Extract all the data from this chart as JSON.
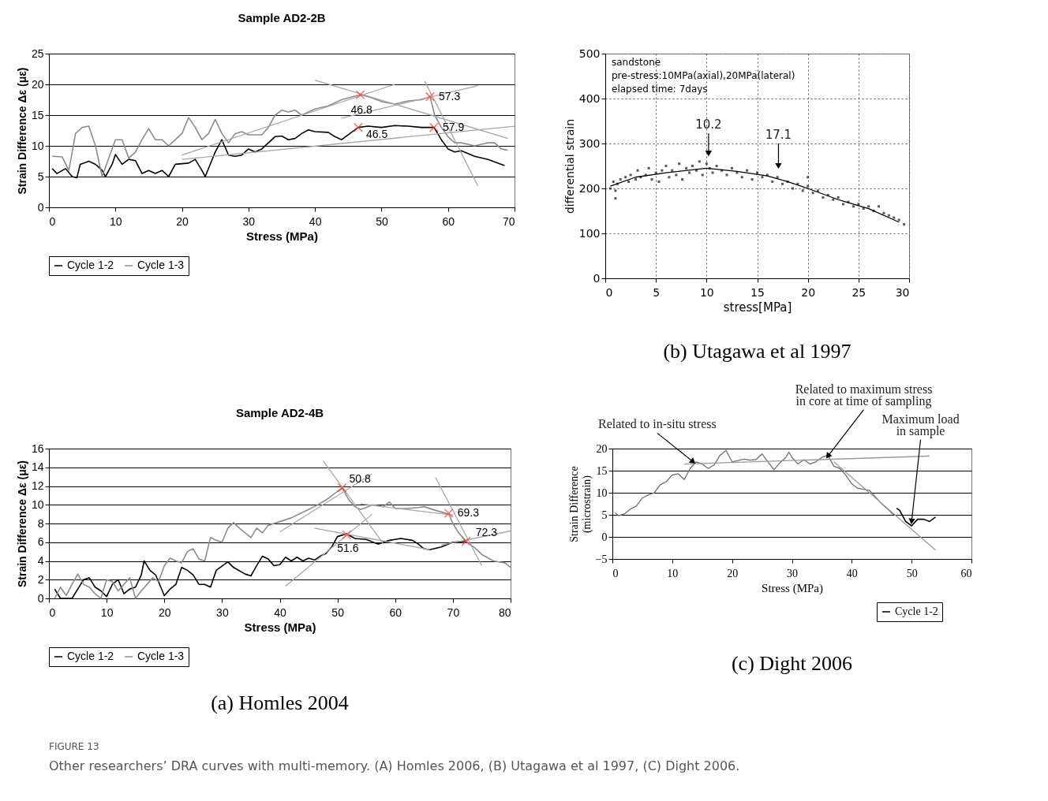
{
  "chart_data": [
    {
      "type": "line",
      "title": "Sample AD2-2B",
      "xlabel": "Stress (MPa)",
      "ylabel": "Strain Difference Δε (με)",
      "xlim": [
        0,
        70
      ],
      "ylim": [
        0,
        25
      ],
      "xticks": [
        0,
        10,
        20,
        30,
        40,
        50,
        60,
        70
      ],
      "yticks": [
        0,
        5,
        10,
        15,
        20,
        25
      ],
      "grid": "y",
      "legend": "bottom",
      "series": [
        {
          "name": "Cycle 1-2",
          "color": "#000000",
          "x": [
            0.5,
            1.2,
            2.5,
            3.5,
            4.2,
            4.7,
            6,
            7,
            8,
            8.5,
            9.5,
            10,
            11,
            12,
            13,
            14,
            15,
            16,
            17,
            18,
            19,
            21,
            22,
            23,
            23.5,
            25,
            26,
            27,
            28,
            29,
            30,
            31,
            32,
            33,
            34,
            35,
            36,
            37,
            38,
            39,
            40,
            42,
            43,
            44,
            46.5,
            48,
            50,
            52,
            54,
            56,
            57.9,
            59,
            60,
            61,
            62,
            64,
            66,
            68.5
          ],
          "values": [
            6.3,
            5.5,
            6.3,
            5,
            4.8,
            7,
            7.5,
            7,
            6,
            5,
            7,
            8.6,
            7,
            7.8,
            7.6,
            5.5,
            6,
            5.5,
            6,
            5,
            7,
            7.2,
            7.8,
            6,
            5,
            9,
            11,
            8.5,
            8.3,
            8.5,
            9.5,
            9,
            9.5,
            10.5,
            11.5,
            11.6,
            11,
            11.2,
            12,
            12.6,
            12.3,
            12.2,
            11.5,
            11,
            13,
            13.2,
            13,
            13.3,
            13.2,
            13,
            13,
            11,
            9.5,
            9,
            9.2,
            8.3,
            7.8,
            6.8
          ]
        },
        {
          "name": "Cycle 1-3",
          "color": "#8c8c8c",
          "x": [
            0.5,
            2,
            3,
            4,
            5,
            6,
            7,
            8,
            9,
            10,
            11,
            12,
            13,
            14,
            15,
            16,
            17,
            18,
            19,
            20,
            21,
            22,
            23,
            24,
            25,
            26,
            27,
            28,
            29,
            30,
            32,
            33,
            34,
            35,
            36,
            37,
            38,
            40,
            42,
            44,
            46.8,
            48,
            50,
            52,
            54,
            56,
            57.3,
            58,
            59,
            60,
            61,
            62,
            64,
            66,
            67,
            68,
            69
          ],
          "values": [
            8.3,
            8.2,
            6,
            12,
            13,
            13.2,
            10,
            5,
            8,
            11,
            11,
            8,
            9,
            11,
            12.8,
            11,
            11,
            10,
            11,
            12,
            14.6,
            13,
            11,
            12,
            14.3,
            12,
            10.5,
            12,
            12.3,
            11.8,
            11.8,
            13,
            15,
            15.8,
            15.5,
            15.8,
            15,
            16,
            16.5,
            17.5,
            18.3,
            18,
            17.2,
            16.8,
            17.3,
            17.5,
            18,
            15,
            13,
            11.5,
            10.5,
            10.5,
            10,
            10.5,
            10.5,
            9.5,
            9.3
          ]
        },
        {
          "color": "#a6a6a6",
          "x": [
            20,
            52
          ],
          "values": [
            8.5,
            20
          ]
        },
        {
          "color": "#a6a6a6",
          "x": [
            40,
            69
          ],
          "values": [
            20.7,
            11.2
          ]
        },
        {
          "color": "#a6a6a6",
          "x": [
            44,
            64.5
          ],
          "values": [
            14.5,
            19.8
          ]
        },
        {
          "color": "#a6a6a6",
          "x": [
            56.5,
            64.5
          ],
          "values": [
            20.5,
            3.5
          ]
        },
        {
          "color": "#a6a6a6",
          "x": [
            20,
            70
          ],
          "values": [
            7.8,
            13.2
          ]
        },
        {
          "type": "scatter",
          "marker": "cross",
          "color": "#ff3b3b",
          "x": [
            46.8,
            57.3,
            46.5,
            57.9
          ],
          "values": [
            18.3,
            18,
            13,
            13
          ]
        }
      ],
      "annotations": [
        {
          "text": "46.8",
          "x": 46.8,
          "y": 18.3
        },
        {
          "text": "57.3",
          "x": 57.3,
          "y": 18
        },
        {
          "text": "46.5",
          "x": 46.5,
          "y": 13
        },
        {
          "text": "57.9",
          "x": 57.9,
          "y": 13
        }
      ]
    },
    {
      "type": "scatter",
      "xlabel": "stress[MPa]",
      "ylabel": "differential strain",
      "xlim": [
        0,
        30
      ],
      "ylim": [
        0,
        500
      ],
      "xticks": [
        0,
        5,
        10,
        15,
        20,
        25,
        30
      ],
      "yticks": [
        0,
        100,
        200,
        300,
        400,
        500
      ],
      "grid": true,
      "series": [
        {
          "type": "scatter",
          "marker": "square",
          "color": "#111111",
          "x": [
            0.5,
            0.8,
            1,
            1.2,
            1.5,
            2,
            2.3,
            2.5,
            3,
            3.2,
            3.5,
            4,
            4.3,
            4.6,
            5,
            5.3,
            5.6,
            6,
            6.3,
            6.6,
            7,
            7.3,
            7.6,
            8,
            8.3,
            8.6,
            9,
            9.3,
            9.6,
            10,
            10.3,
            10.6,
            11,
            11.5,
            12,
            12.5,
            13,
            13.5,
            14,
            14.5,
            15,
            15.5,
            16,
            16.5,
            17,
            17.5,
            18,
            18.5,
            19,
            19.5,
            20,
            20.5,
            21,
            21.5,
            22,
            22.5,
            23,
            23.5,
            24,
            24.5,
            25,
            25.5,
            26,
            26.5,
            27,
            27.5,
            28,
            28.5,
            29,
            29.5,
            1,
            20
          ],
          "values": [
            200,
            215,
            195,
            210,
            220,
            225,
            215,
            230,
            220,
            240,
            225,
            230,
            245,
            220,
            235,
            215,
            240,
            250,
            225,
            240,
            230,
            255,
            220,
            245,
            235,
            250,
            240,
            260,
            230,
            255,
            245,
            235,
            250,
            240,
            230,
            245,
            235,
            225,
            240,
            220,
            235,
            225,
            230,
            215,
            225,
            210,
            215,
            200,
            210,
            195,
            205,
            190,
            195,
            180,
            185,
            175,
            180,
            165,
            170,
            160,
            165,
            155,
            160,
            150,
            160,
            145,
            140,
            135,
            130,
            120,
            178,
            225
          ]
        },
        {
          "type": "line",
          "color": "#000000",
          "x": [
            0.5,
            3,
            6,
            10,
            13,
            16,
            18,
            20,
            23,
            26,
            29
          ],
          "values": [
            205,
            225,
            235,
            245,
            238,
            228,
            215,
            200,
            175,
            155,
            125
          ]
        }
      ],
      "annotations": [
        "sandstone",
        "pre-stress:10MPa(axial),20MPa(lateral)",
        "elapsed time: 7days",
        {
          "text": "10.2",
          "x": 10.2,
          "y": 278
        },
        {
          "text": "17.1",
          "x": 17.1,
          "y": 250
        },
        "(b) Utagawa et al 1997"
      ]
    },
    {
      "type": "line",
      "title": "Sample AD2-4B",
      "xlabel": "Stress (MPa)",
      "ylabel": "Strain Difference Δε (με)",
      "xlim": [
        0,
        80
      ],
      "ylim": [
        0,
        16
      ],
      "xticks": [
        0,
        10,
        20,
        30,
        40,
        50,
        60,
        70,
        80
      ],
      "yticks": [
        0,
        2,
        4,
        6,
        8,
        10,
        12,
        14,
        16
      ],
      "grid": "y",
      "legend": "bottom",
      "series": [
        {
          "name": "Cycle 1-2",
          "color": "#000000",
          "x": [
            1,
            2,
            4,
            5,
            6,
            7,
            8,
            9,
            10,
            11,
            12,
            13,
            14,
            15,
            16,
            16.5,
            17.5,
            18.5,
            20,
            21,
            22,
            23,
            24,
            25,
            26,
            27,
            28,
            29,
            31,
            32,
            34,
            35,
            36,
            37,
            38,
            39,
            40,
            41,
            42,
            43,
            44,
            45,
            46,
            47,
            48,
            49,
            50,
            51.6,
            53,
            55,
            57,
            59,
            61,
            63,
            64,
            65,
            66,
            68,
            70,
            72.3
          ],
          "values": [
            1,
            0,
            0,
            1,
            2,
            2.2,
            1.2,
            0.8,
            0.2,
            1.5,
            2,
            0.5,
            1,
            1.2,
            2.5,
            4,
            3,
            2.5,
            0.3,
            1,
            1.5,
            3.3,
            3,
            2.5,
            1.5,
            1.5,
            1.2,
            3,
            3.9,
            3.3,
            2.6,
            2.4,
            3.5,
            4.5,
            4.2,
            3.5,
            3.6,
            4.4,
            4,
            4.4,
            4,
            4.3,
            4.1,
            4.5,
            4.8,
            5.5,
            6.6,
            6.9,
            6.4,
            6.3,
            5.8,
            6.2,
            6.4,
            6.2,
            5.8,
            5.3,
            5.2,
            5.5,
            6,
            6.1
          ]
        },
        {
          "name": "Cycle 1-3",
          "color": "#8c8c8c",
          "x": [
            1,
            2,
            3,
            4,
            5,
            6,
            7,
            8,
            9,
            10,
            11,
            12,
            13,
            14,
            15,
            16,
            17,
            18,
            19,
            20,
            21,
            22,
            23,
            24,
            25,
            26,
            27,
            28,
            29,
            30,
            31,
            32,
            33,
            34,
            35,
            36,
            37,
            38,
            39,
            40,
            42,
            44,
            46,
            48,
            50.8,
            52,
            53,
            54,
            55,
            56,
            58,
            59,
            60,
            62,
            64,
            65,
            67,
            69.3,
            70,
            71,
            72.3,
            74,
            75,
            77,
            78,
            79,
            80
          ],
          "values": [
            0,
            1.2,
            0.3,
            1.5,
            2.6,
            1.5,
            1.2,
            0.5,
            0,
            2,
            1.8,
            0.8,
            1.5,
            2.2,
            0,
            0.8,
            1.5,
            2.2,
            1.8,
            3.5,
            4.3,
            4,
            3.8,
            5,
            5.3,
            4.2,
            4,
            6.5,
            6.2,
            6,
            7.5,
            8.1,
            7.5,
            7,
            6.5,
            7.5,
            7,
            7.8,
            8,
            8.2,
            8.6,
            9.2,
            9.8,
            10.5,
            11.8,
            10.5,
            9.8,
            9.5,
            9.7,
            10,
            9.8,
            10.3,
            9.6,
            9.6,
            9.7,
            9.8,
            9.4,
            9,
            8,
            7,
            6.1,
            5.3,
            4.7,
            4,
            3.9,
            3.8,
            3.3
          ]
        },
        {
          "color": "#a6a6a6",
          "x": [
            40,
            56
          ],
          "values": [
            7.1,
            13.3
          ]
        },
        {
          "color": "#a6a6a6",
          "x": [
            47.5,
            58
          ],
          "values": [
            14.7,
            5.8
          ]
        },
        {
          "color": "#a6a6a6",
          "x": [
            41,
            56
          ],
          "values": [
            1.3,
            9
          ]
        },
        {
          "color": "#a6a6a6",
          "x": [
            46,
            66
          ],
          "values": [
            7.5,
            5.2
          ]
        },
        {
          "color": "#a6a6a6",
          "x": [
            54,
            70
          ],
          "values": [
            10.1,
            8.9
          ]
        },
        {
          "color": "#a6a6a6",
          "x": [
            67,
            75
          ],
          "values": [
            12.9,
            3.5
          ]
        },
        {
          "color": "#a6a6a6",
          "x": [
            68,
            80
          ],
          "values": [
            5.7,
            7.2
          ]
        },
        {
          "type": "scatter",
          "marker": "cross",
          "color": "#ff3b3b",
          "x": [
            50.8,
            69.3,
            51.6,
            72.3
          ],
          "values": [
            11.8,
            9.1,
            6.8,
            6.1
          ]
        }
      ],
      "annotations": [
        {
          "text": "50.8",
          "x": 50.8,
          "y": 11.8
        },
        {
          "text": "69.3",
          "x": 69.3,
          "y": 9.1
        },
        {
          "text": "51.6",
          "x": 51.6,
          "y": 6.8
        },
        {
          "text": "72.3",
          "x": 72.3,
          "y": 6.1
        },
        "(a) Homles 2004"
      ]
    },
    {
      "type": "line",
      "xlabel": "Stress (MPa)",
      "ylabel": "Strain Difference\n(microstrain)",
      "xlim": [
        0,
        60
      ],
      "ylim": [
        -5,
        20
      ],
      "xticks": [
        0,
        10,
        20,
        30,
        40,
        50,
        60
      ],
      "yticks": [
        -5,
        0,
        5,
        10,
        15,
        20
      ],
      "grid": "y",
      "legend": "bottom right",
      "series": [
        {
          "color": "#6e6e6e",
          "x": [
            0.5,
            1,
            2,
            3,
            4,
            5,
            6,
            7,
            8,
            9,
            10,
            11,
            12,
            13,
            14,
            15,
            16,
            17,
            18,
            19,
            20,
            21,
            22,
            23,
            24,
            25,
            26,
            27,
            28,
            29,
            29.5,
            30,
            31,
            32,
            33,
            34,
            35,
            36,
            37,
            38,
            39,
            40,
            41,
            42,
            43,
            44,
            45,
            46,
            47
          ],
          "values": [
            5.5,
            4.8,
            5.2,
            6.3,
            7,
            8.8,
            9.5,
            10,
            11.8,
            12.5,
            14,
            14.3,
            13,
            15.5,
            17,
            16.5,
            15.5,
            16.3,
            18.5,
            19.6,
            17,
            17.3,
            17.6,
            17.4,
            17.5,
            18.8,
            17,
            15.2,
            16.8,
            18,
            19.2,
            18,
            16.5,
            17.5,
            16.5,
            17,
            18,
            18.5,
            16,
            15.5,
            14,
            12,
            11,
            10.8,
            10.5,
            9,
            7.5,
            6.3,
            5
          ]
        },
        {
          "name": "Cycle 1-2",
          "color": "#000000",
          "x": [
            47.5,
            48,
            49,
            50,
            51,
            52,
            53,
            54
          ],
          "values": [
            6.5,
            6,
            3.5,
            2.5,
            4,
            4,
            3.5,
            4.5
          ]
        },
        {
          "color": "#9a9a9a",
          "x": [
            12,
            53
          ],
          "values": [
            16.5,
            18.3
          ]
        },
        {
          "color": "#9a9a9a",
          "x": [
            37,
            54
          ],
          "values": [
            17,
            -3
          ]
        }
      ],
      "annotations": [
        {
          "text": "Related to in-situ stress",
          "x": 13.5,
          "y": 17
        },
        {
          "text": "Related to maximum stress\nin core at time of sampling",
          "x": 36,
          "y": 18.3
        },
        {
          "text": "Maximum load\nin sample",
          "x": 50,
          "y": 3.5
        },
        "(c) Dight 2006"
      ]
    },
    {
      "type": "other",
      "annotations": [
        "FIGURE 13",
        "Other researchers’ DRA curves with multi-memory. (A) Homles 2006, (B) Utagawa et al 1997, (C) Dight 2006."
      ]
    }
  ]
}
